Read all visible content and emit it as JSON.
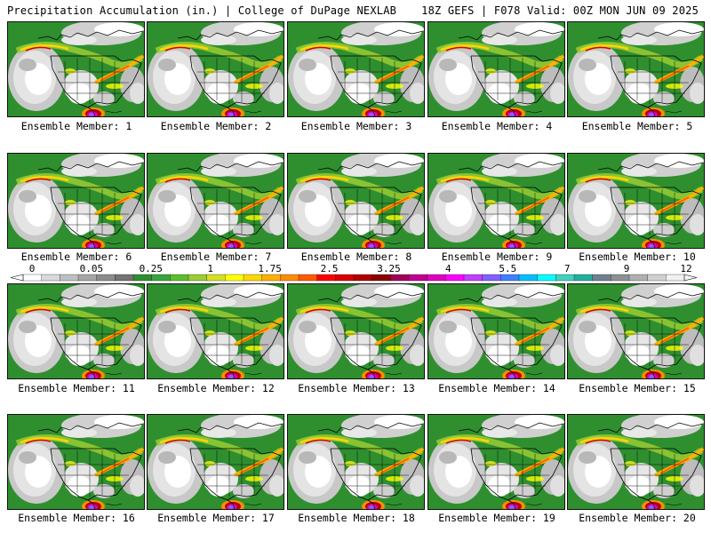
{
  "header": {
    "left": "Precipitation Accumulation (in.) | College of DuPage NEXLAB",
    "right": "18Z GEFS | F078 Valid: 00Z MON JUN 09 2025"
  },
  "members": [
    "Ensemble Member: 1",
    "Ensemble Member: 2",
    "Ensemble Member: 3",
    "Ensemble Member: 4",
    "Ensemble Member: 5",
    "Ensemble Member: 6",
    "Ensemble Member: 7",
    "Ensemble Member: 8",
    "Ensemble Member: 9",
    "Ensemble Member: 10",
    "Ensemble Member: 11",
    "Ensemble Member: 12",
    "Ensemble Member: 13",
    "Ensemble Member: 14",
    "Ensemble Member: 15",
    "Ensemble Member: 16",
    "Ensemble Member: 17",
    "Ensemble Member: 18",
    "Ensemble Member: 19",
    "Ensemble Member: 20"
  ],
  "colorbar": {
    "labels": [
      "0",
      "0.05",
      "0.25",
      "1",
      "1.75",
      "2.5",
      "3.25",
      "4",
      "5.5",
      "7",
      "9",
      "12"
    ],
    "colors": [
      "#ffffff",
      "#d9d9d9",
      "#bfbfbf",
      "#a6a6a6",
      "#8c8c8c",
      "#737373",
      "#2f8f2f",
      "#3aa53a",
      "#5cbf2a",
      "#9acd32",
      "#d4e020",
      "#ffff00",
      "#ffd700",
      "#ffb000",
      "#ff8c00",
      "#ff5a00",
      "#ff0000",
      "#d80000",
      "#b00000",
      "#8b0000",
      "#a0005a",
      "#c00090",
      "#e000c0",
      "#ff00ff",
      "#c040ff",
      "#8060ff",
      "#4080ff",
      "#00c0ff",
      "#00ffff",
      "#40d0c0",
      "#20b0a0",
      "#708090",
      "#909090",
      "#b0b0b0",
      "#d0d0d0",
      "#f0f0f0"
    ]
  }
}
